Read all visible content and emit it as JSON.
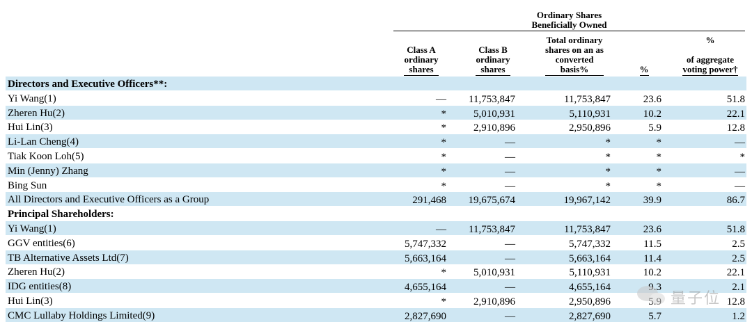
{
  "header": {
    "group_title": "Ordinary Shares\nBeneficially Owned",
    "col_class_a": "Class A\nordinary\nshares",
    "col_class_b": "Class B\nordinary\nshares",
    "col_total": "Total ordinary\nshares on an as\nconverted\nbasis%",
    "col_pct": "%",
    "col_voting_pct": "%",
    "col_voting": "of aggregate\nvoting power†"
  },
  "rows": [
    {
      "type": "section",
      "label": "Directors and Executive Officers**:",
      "a": "",
      "b": "",
      "total": "",
      "pct": "",
      "vote": ""
    },
    {
      "label": "Yi Wang(1)",
      "a": "—",
      "b": "11,753,847",
      "total": "11,753,847",
      "pct": "23.6",
      "vote": "51.8"
    },
    {
      "label": "Zheren Hu(2)",
      "a": "*",
      "b": "5,010,931",
      "total": "5,110,931",
      "pct": "10.2",
      "vote": "22.1"
    },
    {
      "label": "Hui Lin(3)",
      "a": "*",
      "b": "2,910,896",
      "total": "2,950,896",
      "pct": "5.9",
      "vote": "12.8"
    },
    {
      "label": "Li-Lan Cheng(4)",
      "a": "*",
      "b": "—",
      "total": "*",
      "pct": "*",
      "vote": "—"
    },
    {
      "label": "Tiak Koon Loh(5)",
      "a": "*",
      "b": "—",
      "total": "*",
      "pct": "*",
      "vote": "*"
    },
    {
      "label": "Min (Jenny) Zhang",
      "a": "*",
      "b": "—",
      "total": "*",
      "pct": "*",
      "vote": "—"
    },
    {
      "label": "Bing Sun",
      "a": "*",
      "b": "—",
      "total": "*",
      "pct": "*",
      "vote": "—"
    },
    {
      "label": "All Directors and Executive Officers as a Group",
      "a": "291,468",
      "b": "19,675,674",
      "total": "19,967,142",
      "pct": "39.9",
      "vote": "86.7"
    },
    {
      "type": "section",
      "label": "Principal Shareholders:",
      "a": "",
      "b": "",
      "total": "",
      "pct": "",
      "vote": ""
    },
    {
      "label": "Yi Wang(1)",
      "a": "—",
      "b": "11,753,847",
      "total": "11,753,847",
      "pct": "23.6",
      "vote": "51.8"
    },
    {
      "label": "GGV entities(6)",
      "a": "5,747,332",
      "b": "—",
      "total": "5,747,332",
      "pct": "11.5",
      "vote": "2.5"
    },
    {
      "label": "TB Alternative Assets Ltd(7)",
      "a": "5,663,164",
      "b": "—",
      "total": "5,663,164",
      "pct": "11.4",
      "vote": "2.5"
    },
    {
      "label": "Zheren Hu(2)",
      "a": "*",
      "b": "5,010,931",
      "total": "5,110,931",
      "pct": "10.2",
      "vote": "22.1"
    },
    {
      "label": "IDG entities(8)",
      "a": "4,655,164",
      "b": "—",
      "total": "4,655,164",
      "pct": "9.3",
      "vote": "2.1"
    },
    {
      "label": "Hui Lin(3)",
      "a": "*",
      "b": "2,910,896",
      "total": "2,950,896",
      "pct": "5.9",
      "vote": "12.8"
    },
    {
      "label": "CMC Lullaby Holdings Limited(9)",
      "a": "2,827,690",
      "b": "—",
      "total": "2,827,690",
      "pct": "5.7",
      "vote": "1.2"
    }
  ],
  "watermark": {
    "icon": "wechat-icon",
    "text": "量子位"
  }
}
